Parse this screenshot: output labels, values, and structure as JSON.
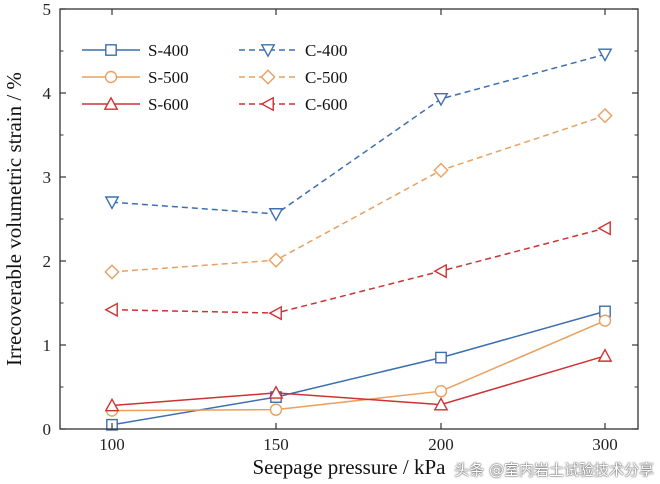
{
  "chart_data": {
    "type": "line",
    "title": "",
    "xlabel": "Seepage pressure / kPa",
    "ylabel": "Irrecoverable volumetric strain / %",
    "categories": [
      "100",
      "150",
      "200",
      "300"
    ],
    "ylim": [
      0,
      5
    ],
    "yticks": [
      "0",
      "1",
      "2",
      "3",
      "4",
      "5"
    ],
    "legend_position": "top-left",
    "series": [
      {
        "name": "S-400",
        "values": [
          0.05,
          0.38,
          0.85,
          1.4
        ],
        "color": "#3d6fb0",
        "marker": "square",
        "dash": "solid"
      },
      {
        "name": "S-500",
        "values": [
          0.22,
          0.23,
          0.45,
          1.29
        ],
        "color": "#e9a060",
        "marker": "circle",
        "dash": "solid"
      },
      {
        "name": "S-600",
        "values": [
          0.28,
          0.43,
          0.29,
          0.87
        ],
        "color": "#cc3333",
        "marker": "triangle-up",
        "dash": "solid"
      },
      {
        "name": "C-400",
        "values": [
          2.7,
          2.56,
          3.93,
          4.46
        ],
        "color": "#3d6fb0",
        "marker": "triangle-down",
        "dash": "dashed"
      },
      {
        "name": "C-500",
        "values": [
          1.87,
          2.01,
          3.08,
          3.73
        ],
        "color": "#e9a060",
        "marker": "diamond",
        "dash": "dashed"
      },
      {
        "name": "C-600",
        "values": [
          1.42,
          1.38,
          1.88,
          2.39
        ],
        "color": "#cc3333",
        "marker": "triangle-left",
        "dash": "dashed"
      }
    ]
  },
  "watermark": "头条 @室内岩土试验技术分享"
}
